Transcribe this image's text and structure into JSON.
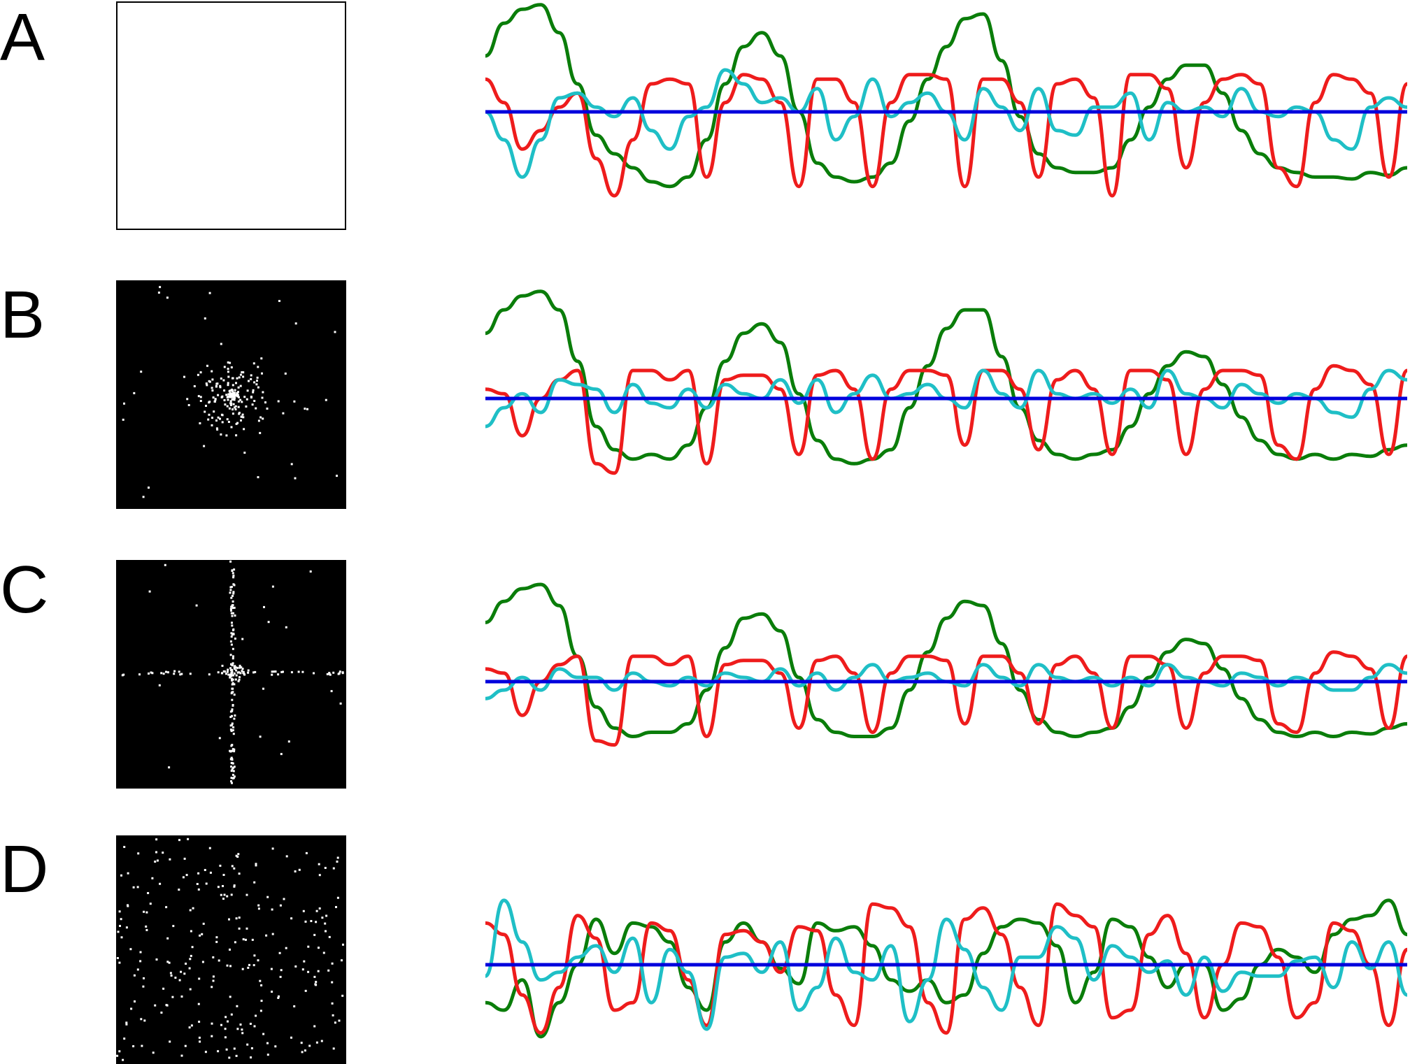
{
  "panels": [
    {
      "letter": "A",
      "matrix": "empty"
    },
    {
      "letter": "B",
      "matrix": "central-cluster"
    },
    {
      "letter": "C",
      "matrix": "cross-cluster"
    },
    {
      "letter": "D",
      "matrix": "uniform-scatter"
    }
  ],
  "series_colors": {
    "green": "#0a7d0a",
    "red": "#ee1c1c",
    "cyan": "#1fbfc6",
    "blue": "#0000dd"
  },
  "chart_data": [
    {
      "type": "line",
      "panel": "A",
      "title": "",
      "xlabel": "",
      "ylabel": "",
      "x": [
        0,
        0.02,
        0.04,
        0.06,
        0.08,
        0.1,
        0.12,
        0.14,
        0.16,
        0.18,
        0.2,
        0.22,
        0.24,
        0.26,
        0.28,
        0.3,
        0.32,
        0.34,
        0.36,
        0.38,
        0.4,
        0.42,
        0.44,
        0.46,
        0.48,
        0.5,
        0.52,
        0.54,
        0.56,
        0.58,
        0.6,
        0.62,
        0.64,
        0.66,
        0.68,
        0.7,
        0.72,
        0.74,
        0.76,
        0.78,
        0.8,
        0.82,
        0.84,
        0.86,
        0.88,
        0.9,
        0.92,
        0.94,
        0.96,
        0.98,
        1
      ],
      "ylim": [
        -1.2,
        1.2
      ],
      "series": [
        {
          "color": "green",
          "values": [
            0.6,
            0.95,
            1.1,
            1.15,
            0.85,
            0.3,
            -0.25,
            -0.45,
            -0.6,
            -0.75,
            -0.8,
            -0.7,
            -0.3,
            0.3,
            0.7,
            0.85,
            0.6,
            0.0,
            -0.55,
            -0.7,
            -0.75,
            -0.7,
            -0.55,
            -0.1,
            0.35,
            0.7,
            1.0,
            1.05,
            0.55,
            -0.05,
            -0.45,
            -0.6,
            -0.65,
            -0.65,
            -0.6,
            -0.3,
            0.05,
            0.35,
            0.5,
            0.5,
            0.2,
            -0.2,
            -0.45,
            -0.6,
            -0.65,
            -0.7,
            -0.7,
            -0.72,
            -0.65,
            -0.68,
            -0.6
          ]
        },
        {
          "color": "red",
          "values": [
            0.35,
            0.1,
            -0.4,
            -0.2,
            0.05,
            0.2,
            -0.5,
            -0.9,
            -0.3,
            0.3,
            0.35,
            0.3,
            -0.7,
            0.1,
            0.4,
            0.35,
            0.1,
            -0.8,
            0.35,
            0.35,
            0.1,
            -0.8,
            0.1,
            0.4,
            0.4,
            0.35,
            -0.8,
            0.35,
            0.35,
            0.1,
            -0.7,
            0.3,
            0.35,
            0.15,
            -0.9,
            0.4,
            0.4,
            0.25,
            -0.6,
            0.1,
            0.35,
            0.4,
            0.3,
            -0.6,
            -0.8,
            0.1,
            0.4,
            0.35,
            0.2,
            -0.7,
            0.3
          ]
        },
        {
          "color": "cyan",
          "values": [
            0.0,
            -0.3,
            -0.7,
            -0.3,
            0.15,
            0.2,
            0.05,
            -0.05,
            0.15,
            -0.2,
            -0.4,
            -0.05,
            0.05,
            0.45,
            0.3,
            0.1,
            0.15,
            0.0,
            0.25,
            -0.3,
            -0.05,
            0.35,
            -0.05,
            0.1,
            0.2,
            0.0,
            -0.3,
            0.25,
            0.05,
            -0.2,
            0.25,
            -0.2,
            -0.25,
            0.05,
            0.05,
            0.2,
            -0.3,
            0.1,
            0.0,
            0.05,
            -0.05,
            0.25,
            0.0,
            -0.05,
            0.05,
            0.0,
            -0.3,
            -0.4,
            0.05,
            0.15,
            0.05
          ]
        },
        {
          "color": "blue",
          "values": [
            0,
            0,
            0,
            0,
            0,
            0,
            0,
            0,
            0,
            0,
            0,
            0,
            0,
            0,
            0,
            0,
            0,
            0,
            0,
            0,
            0,
            0,
            0,
            0,
            0,
            0,
            0,
            0,
            0,
            0,
            0,
            0,
            0,
            0,
            0,
            0,
            0,
            0,
            0,
            0,
            0,
            0,
            0,
            0,
            0,
            0,
            0,
            0,
            0,
            0,
            0
          ]
        }
      ]
    },
    {
      "type": "line",
      "panel": "B",
      "title": "",
      "xlabel": "",
      "ylabel": "",
      "x": [
        0,
        0.02,
        0.04,
        0.06,
        0.08,
        0.1,
        0.12,
        0.14,
        0.16,
        0.18,
        0.2,
        0.22,
        0.24,
        0.26,
        0.28,
        0.3,
        0.32,
        0.34,
        0.36,
        0.38,
        0.4,
        0.42,
        0.44,
        0.46,
        0.48,
        0.5,
        0.52,
        0.54,
        0.56,
        0.58,
        0.6,
        0.62,
        0.64,
        0.66,
        0.68,
        0.7,
        0.72,
        0.74,
        0.76,
        0.78,
        0.8,
        0.82,
        0.84,
        0.86,
        0.88,
        0.9,
        0.92,
        0.94,
        0.96,
        0.98,
        1
      ],
      "ylim": [
        -1.2,
        1.2
      ],
      "series": [
        {
          "color": "green",
          "values": [
            0.7,
            0.95,
            1.1,
            1.15,
            0.95,
            0.4,
            -0.3,
            -0.55,
            -0.65,
            -0.6,
            -0.65,
            -0.5,
            -0.1,
            0.4,
            0.7,
            0.8,
            0.6,
            0.05,
            -0.45,
            -0.65,
            -0.7,
            -0.65,
            -0.55,
            -0.1,
            0.35,
            0.75,
            0.95,
            0.95,
            0.45,
            -0.1,
            -0.45,
            -0.6,
            -0.65,
            -0.6,
            -0.55,
            -0.3,
            0.05,
            0.35,
            0.5,
            0.45,
            0.15,
            -0.2,
            -0.45,
            -0.6,
            -0.65,
            -0.6,
            -0.65,
            -0.6,
            -0.62,
            -0.55,
            -0.5
          ]
        },
        {
          "color": "red",
          "values": [
            0.1,
            0.05,
            -0.4,
            0.0,
            0.2,
            0.3,
            -0.7,
            -0.8,
            0.3,
            0.3,
            0.2,
            0.3,
            -0.7,
            0.2,
            0.25,
            0.25,
            0.1,
            -0.6,
            0.25,
            0.3,
            0.1,
            -0.65,
            0.1,
            0.3,
            0.3,
            0.25,
            -0.5,
            0.3,
            0.3,
            0.1,
            -0.55,
            0.2,
            0.3,
            0.1,
            -0.6,
            0.3,
            0.3,
            0.2,
            -0.6,
            0.1,
            0.3,
            0.3,
            0.25,
            -0.5,
            -0.65,
            0.1,
            0.35,
            0.3,
            0.15,
            -0.6,
            0.3
          ]
        },
        {
          "color": "cyan",
          "values": [
            -0.3,
            -0.1,
            0.05,
            -0.15,
            0.2,
            0.15,
            0.1,
            -0.15,
            0.15,
            -0.05,
            -0.1,
            0.1,
            -0.1,
            0.15,
            0.05,
            0.0,
            0.2,
            -0.05,
            0.2,
            -0.15,
            0.05,
            0.25,
            0.0,
            0.05,
            0.15,
            0.0,
            -0.1,
            0.3,
            0.05,
            -0.1,
            0.3,
            0.05,
            0.0,
            0.05,
            -0.05,
            0.1,
            -0.1,
            0.3,
            0.05,
            0.0,
            -0.1,
            0.15,
            0.05,
            -0.05,
            0.05,
            0.0,
            -0.15,
            -0.2,
            0.1,
            0.3,
            0.2
          ]
        },
        {
          "color": "blue",
          "values": [
            0,
            0,
            0,
            0,
            0,
            0,
            0,
            0,
            0,
            0,
            0,
            0,
            0,
            0,
            0,
            0,
            0,
            0,
            0,
            0,
            0,
            0,
            0,
            0,
            0,
            0,
            0,
            0,
            0,
            0,
            0,
            0,
            0,
            0,
            0,
            0,
            0,
            0,
            0,
            0,
            0,
            0,
            0,
            0,
            0,
            0,
            0,
            0,
            0,
            0,
            0
          ]
        }
      ]
    },
    {
      "type": "line",
      "panel": "C",
      "title": "",
      "xlabel": "",
      "ylabel": "",
      "x": [
        0,
        0.02,
        0.04,
        0.06,
        0.08,
        0.1,
        0.12,
        0.14,
        0.16,
        0.18,
        0.2,
        0.22,
        0.24,
        0.26,
        0.28,
        0.3,
        0.32,
        0.34,
        0.36,
        0.38,
        0.4,
        0.42,
        0.44,
        0.46,
        0.48,
        0.5,
        0.52,
        0.54,
        0.56,
        0.58,
        0.6,
        0.62,
        0.64,
        0.66,
        0.68,
        0.7,
        0.72,
        0.74,
        0.76,
        0.78,
        0.8,
        0.82,
        0.84,
        0.86,
        0.88,
        0.9,
        0.92,
        0.94,
        0.96,
        0.98,
        1
      ],
      "ylim": [
        -1.2,
        1.2
      ],
      "series": [
        {
          "color": "green",
          "values": [
            0.7,
            0.95,
            1.1,
            1.15,
            0.9,
            0.3,
            -0.3,
            -0.55,
            -0.65,
            -0.6,
            -0.6,
            -0.5,
            -0.1,
            0.4,
            0.75,
            0.8,
            0.6,
            0.05,
            -0.45,
            -0.6,
            -0.65,
            -0.65,
            -0.55,
            -0.1,
            0.35,
            0.75,
            0.95,
            0.9,
            0.45,
            -0.1,
            -0.45,
            -0.6,
            -0.65,
            -0.6,
            -0.55,
            -0.3,
            0.05,
            0.35,
            0.5,
            0.45,
            0.15,
            -0.2,
            -0.45,
            -0.6,
            -0.65,
            -0.6,
            -0.65,
            -0.6,
            -0.62,
            -0.55,
            -0.5
          ]
        },
        {
          "color": "red",
          "values": [
            0.15,
            0.1,
            -0.4,
            0.0,
            0.2,
            0.3,
            -0.7,
            -0.75,
            0.3,
            0.3,
            0.2,
            0.3,
            -0.65,
            0.2,
            0.25,
            0.25,
            0.1,
            -0.55,
            0.25,
            0.3,
            0.1,
            -0.6,
            0.1,
            0.3,
            0.3,
            0.25,
            -0.5,
            0.3,
            0.3,
            0.1,
            -0.5,
            0.2,
            0.3,
            0.1,
            -0.55,
            0.3,
            0.3,
            0.2,
            -0.55,
            0.1,
            0.3,
            0.3,
            0.25,
            -0.5,
            -0.6,
            0.1,
            0.35,
            0.3,
            0.15,
            -0.55,
            0.3
          ]
        },
        {
          "color": "cyan",
          "values": [
            -0.2,
            -0.1,
            0.05,
            -0.1,
            0.15,
            0.05,
            0.05,
            -0.1,
            0.1,
            0.0,
            -0.05,
            0.05,
            -0.05,
            0.1,
            0.05,
            0.0,
            0.15,
            -0.05,
            0.1,
            -0.1,
            0.05,
            0.2,
            0.0,
            0.05,
            0.1,
            0.0,
            -0.05,
            0.2,
            0.05,
            -0.05,
            0.2,
            0.05,
            0.0,
            0.05,
            -0.05,
            0.05,
            -0.05,
            0.2,
            0.05,
            0.0,
            -0.05,
            0.1,
            0.05,
            -0.05,
            0.05,
            0.0,
            -0.1,
            -0.1,
            0.05,
            0.2,
            0.1
          ]
        },
        {
          "color": "blue",
          "values": [
            0,
            0,
            0,
            0,
            0,
            0,
            0,
            0,
            0,
            0,
            0,
            0,
            0,
            0,
            0,
            0,
            0,
            0,
            0,
            0,
            0,
            0,
            0,
            0,
            0,
            0,
            0,
            0,
            0,
            0,
            0,
            0,
            0,
            0,
            0,
            0,
            0,
            0,
            0,
            0,
            0,
            0,
            0,
            0,
            0,
            0,
            0,
            0,
            0,
            0,
            0
          ]
        }
      ]
    },
    {
      "type": "line",
      "panel": "D",
      "title": "",
      "xlabel": "",
      "ylabel": "",
      "x": [
        0,
        0.02,
        0.04,
        0.06,
        0.08,
        0.1,
        0.12,
        0.14,
        0.16,
        0.18,
        0.2,
        0.22,
        0.24,
        0.26,
        0.28,
        0.3,
        0.32,
        0.34,
        0.36,
        0.38,
        0.4,
        0.42,
        0.44,
        0.46,
        0.48,
        0.5,
        0.52,
        0.54,
        0.56,
        0.58,
        0.6,
        0.62,
        0.64,
        0.66,
        0.68,
        0.7,
        0.72,
        0.74,
        0.76,
        0.78,
        0.8,
        0.82,
        0.84,
        0.86,
        0.88,
        0.9,
        0.92,
        0.94,
        0.96,
        0.98,
        1
      ],
      "ylim": [
        -1.2,
        1.2
      ],
      "series": [
        {
          "color": "green",
          "values": [
            -0.5,
            -0.6,
            -0.2,
            -0.95,
            -0.5,
            0.0,
            0.6,
            0.15,
            0.55,
            0.5,
            0.3,
            -0.3,
            -0.6,
            0.3,
            0.55,
            0.3,
            -0.05,
            -0.25,
            0.55,
            0.45,
            0.5,
            0.25,
            -0.2,
            -0.35,
            -0.2,
            -0.5,
            -0.4,
            0.15,
            0.5,
            0.6,
            0.55,
            0.25,
            -0.5,
            -0.1,
            0.6,
            0.5,
            0.1,
            -0.3,
            0.0,
            0.0,
            -0.6,
            -0.45,
            0.0,
            0.2,
            0.1,
            -0.1,
            0.4,
            0.6,
            0.65,
            0.85,
            0.4
          ]
        },
        {
          "color": "red",
          "values": [
            0.55,
            0.4,
            -0.4,
            -0.9,
            -0.3,
            0.65,
            0.35,
            -0.6,
            -0.5,
            0.55,
            0.45,
            -0.2,
            -0.8,
            0.4,
            0.45,
            0.3,
            -0.1,
            0.5,
            0.45,
            -0.4,
            -0.8,
            0.8,
            0.75,
            0.5,
            -0.5,
            -0.9,
            0.6,
            0.75,
            0.4,
            -0.3,
            -0.8,
            0.8,
            0.65,
            0.5,
            -0.7,
            -0.6,
            0.4,
            0.65,
            0.15,
            -0.7,
            0.0,
            0.55,
            0.5,
            0.1,
            -0.7,
            -0.5,
            0.55,
            0.45,
            0.0,
            -0.8,
            0.2
          ]
        },
        {
          "color": "cyan",
          "values": [
            -0.15,
            0.85,
            0.3,
            -0.2,
            -0.1,
            0.1,
            0.25,
            -0.1,
            0.35,
            -0.5,
            0.2,
            -0.1,
            -0.85,
            0.1,
            0.15,
            -0.1,
            0.3,
            -0.6,
            -0.3,
            0.35,
            -0.1,
            -0.2,
            0.25,
            -0.75,
            -0.2,
            0.6,
            0.2,
            -0.3,
            -0.6,
            0.1,
            0.1,
            0.5,
            0.35,
            -0.2,
            0.25,
            0.1,
            -0.1,
            0.05,
            -0.4,
            0.1,
            -0.35,
            -0.1,
            -0.15,
            -0.15,
            0.05,
            0.1,
            -0.3,
            0.3,
            -0.05,
            0.3,
            -0.4
          ]
        },
        {
          "color": "blue",
          "values": [
            0,
            0,
            0,
            0,
            0,
            0,
            0,
            0,
            0,
            0,
            0,
            0,
            0,
            0,
            0,
            0,
            0,
            0,
            0,
            0,
            0,
            0,
            0,
            0,
            0,
            0,
            0,
            0,
            0,
            0,
            0,
            0,
            0,
            0,
            0,
            0,
            0,
            0,
            0,
            0,
            0,
            0,
            0,
            0,
            0,
            0,
            0,
            0,
            0,
            0,
            0
          ]
        }
      ]
    }
  ]
}
